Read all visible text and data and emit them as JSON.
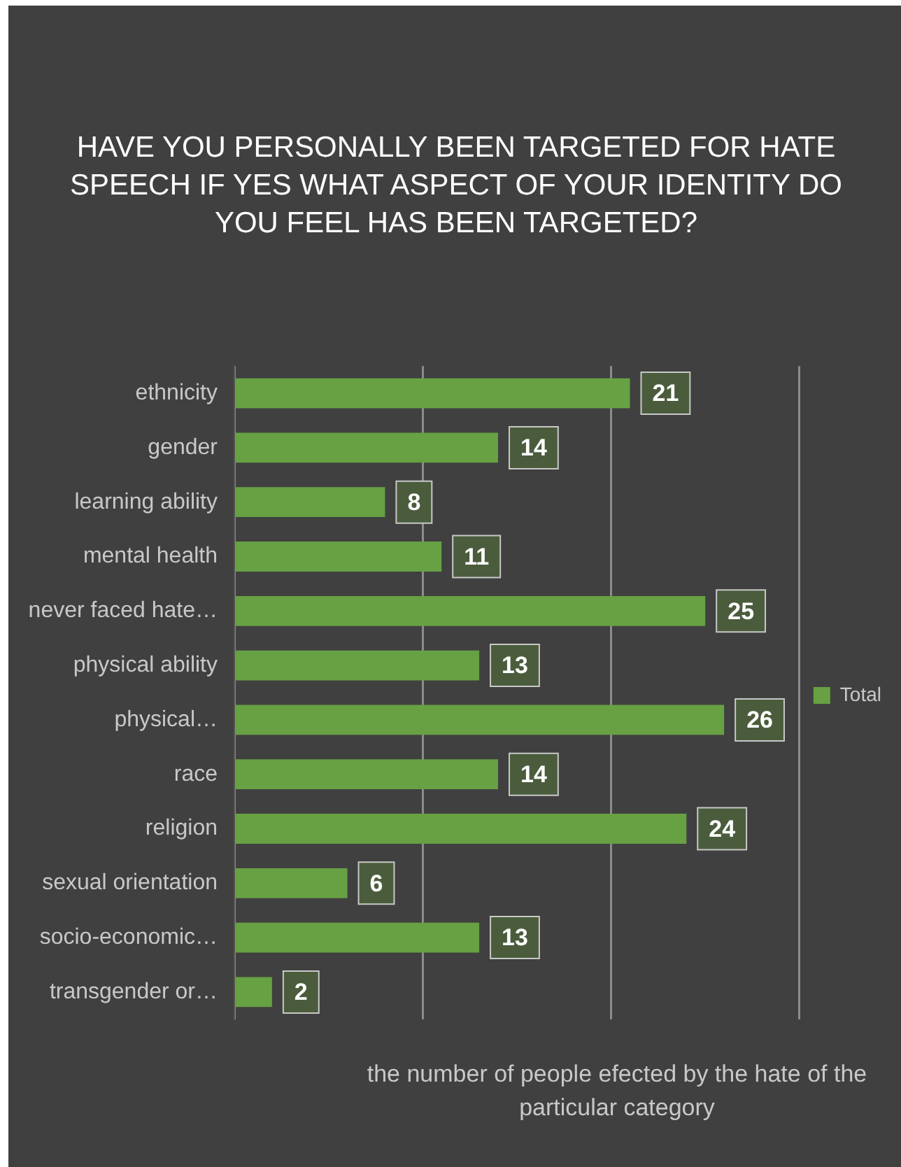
{
  "chart_data": {
    "type": "bar",
    "orientation": "horizontal",
    "title": "HAVE YOU PERSONALLY BEEN TARGETED FOR HATE SPEECH IF YES WHAT ASPECT OF YOUR IDENTITY DO YOU FEEL HAS BEEN TARGETED?",
    "xlabel": "the number of people efected by the hate of the particular category",
    "categories": [
      "ethnicity",
      "gender",
      "learning ability",
      "mental health",
      "never faced hate…",
      "physical ability",
      "physical…",
      "race",
      "religion",
      "sexual orientation",
      "socio-economic…",
      "transgender or…"
    ],
    "series": [
      {
        "name": "Total",
        "color": "#67a143",
        "values": [
          21,
          14,
          8,
          11,
          25,
          13,
          26,
          14,
          24,
          6,
          13,
          2
        ]
      }
    ],
    "xlim": [
      0,
      30
    ],
    "xticks": [
      {
        "value": 0,
        "label": null
      },
      {
        "value": 10,
        "label": null
      },
      {
        "value": 20,
        "label": null
      },
      {
        "value": 30,
        "label": null
      }
    ],
    "tick_labels": "y",
    "grid": "x",
    "legend": "right",
    "data_labels": true
  }
}
